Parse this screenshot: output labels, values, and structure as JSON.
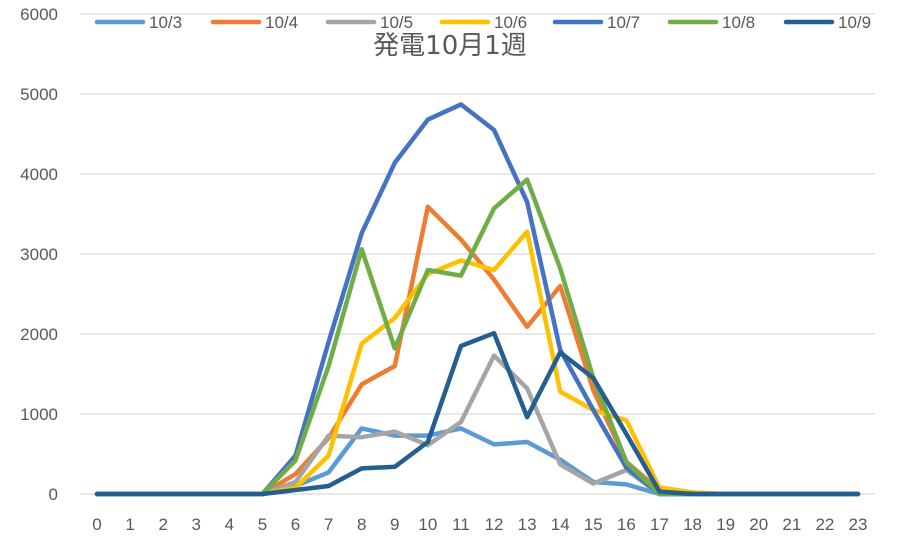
{
  "chart_data": {
    "type": "line",
    "title": "発電10月1週",
    "xlabel": "",
    "ylabel": "",
    "x": [
      0,
      1,
      2,
      3,
      4,
      5,
      6,
      7,
      8,
      9,
      10,
      11,
      12,
      13,
      14,
      15,
      16,
      17,
      18,
      19,
      20,
      21,
      22,
      23
    ],
    "ylim": [
      0,
      6000
    ],
    "yticks": [
      0,
      1000,
      2000,
      3000,
      4000,
      5000,
      6000
    ],
    "grid": true,
    "legend_position": "top",
    "series": [
      {
        "name": "10/3",
        "color": "#5B9BD5",
        "values": [
          0,
          0,
          0,
          0,
          0,
          0,
          100,
          270,
          820,
          730,
          730,
          820,
          620,
          650,
          430,
          150,
          120,
          0,
          0,
          0,
          0,
          0,
          0,
          0
        ]
      },
      {
        "name": "10/4",
        "color": "#ED7D31",
        "values": [
          0,
          0,
          0,
          0,
          0,
          0,
          250,
          700,
          1370,
          1600,
          3590,
          3180,
          2680,
          2090,
          2600,
          1300,
          400,
          50,
          0,
          0,
          0,
          0,
          0,
          0
        ]
      },
      {
        "name": "10/5",
        "color": "#A5A5A5",
        "values": [
          0,
          0,
          0,
          0,
          0,
          0,
          150,
          730,
          710,
          780,
          610,
          900,
          1730,
          1320,
          370,
          130,
          300,
          0,
          0,
          0,
          0,
          0,
          0,
          0
        ]
      },
      {
        "name": "10/6",
        "color": "#FFC000",
        "values": [
          0,
          0,
          0,
          0,
          0,
          0,
          80,
          480,
          1880,
          2200,
          2750,
          2920,
          2800,
          3280,
          1280,
          1050,
          920,
          80,
          20,
          0,
          0,
          0,
          0,
          0
        ]
      },
      {
        "name": "10/7",
        "color": "#4472C4",
        "values": [
          0,
          0,
          0,
          0,
          0,
          0,
          480,
          1900,
          3260,
          4140,
          4680,
          4870,
          4550,
          3650,
          1800,
          1050,
          330,
          0,
          0,
          0,
          0,
          0,
          0,
          0
        ]
      },
      {
        "name": "10/8",
        "color": "#70AD47",
        "values": [
          0,
          0,
          0,
          0,
          0,
          0,
          420,
          1600,
          3060,
          1820,
          2800,
          2730,
          3570,
          3930,
          2820,
          1450,
          400,
          0,
          0,
          0,
          0,
          0,
          0,
          0
        ]
      },
      {
        "name": "10/9",
        "color": "#255E91",
        "values": [
          0,
          0,
          0,
          0,
          0,
          0,
          50,
          100,
          320,
          340,
          650,
          1850,
          2010,
          960,
          1770,
          1450,
          750,
          30,
          0,
          0,
          0,
          0,
          0,
          0
        ]
      }
    ]
  }
}
